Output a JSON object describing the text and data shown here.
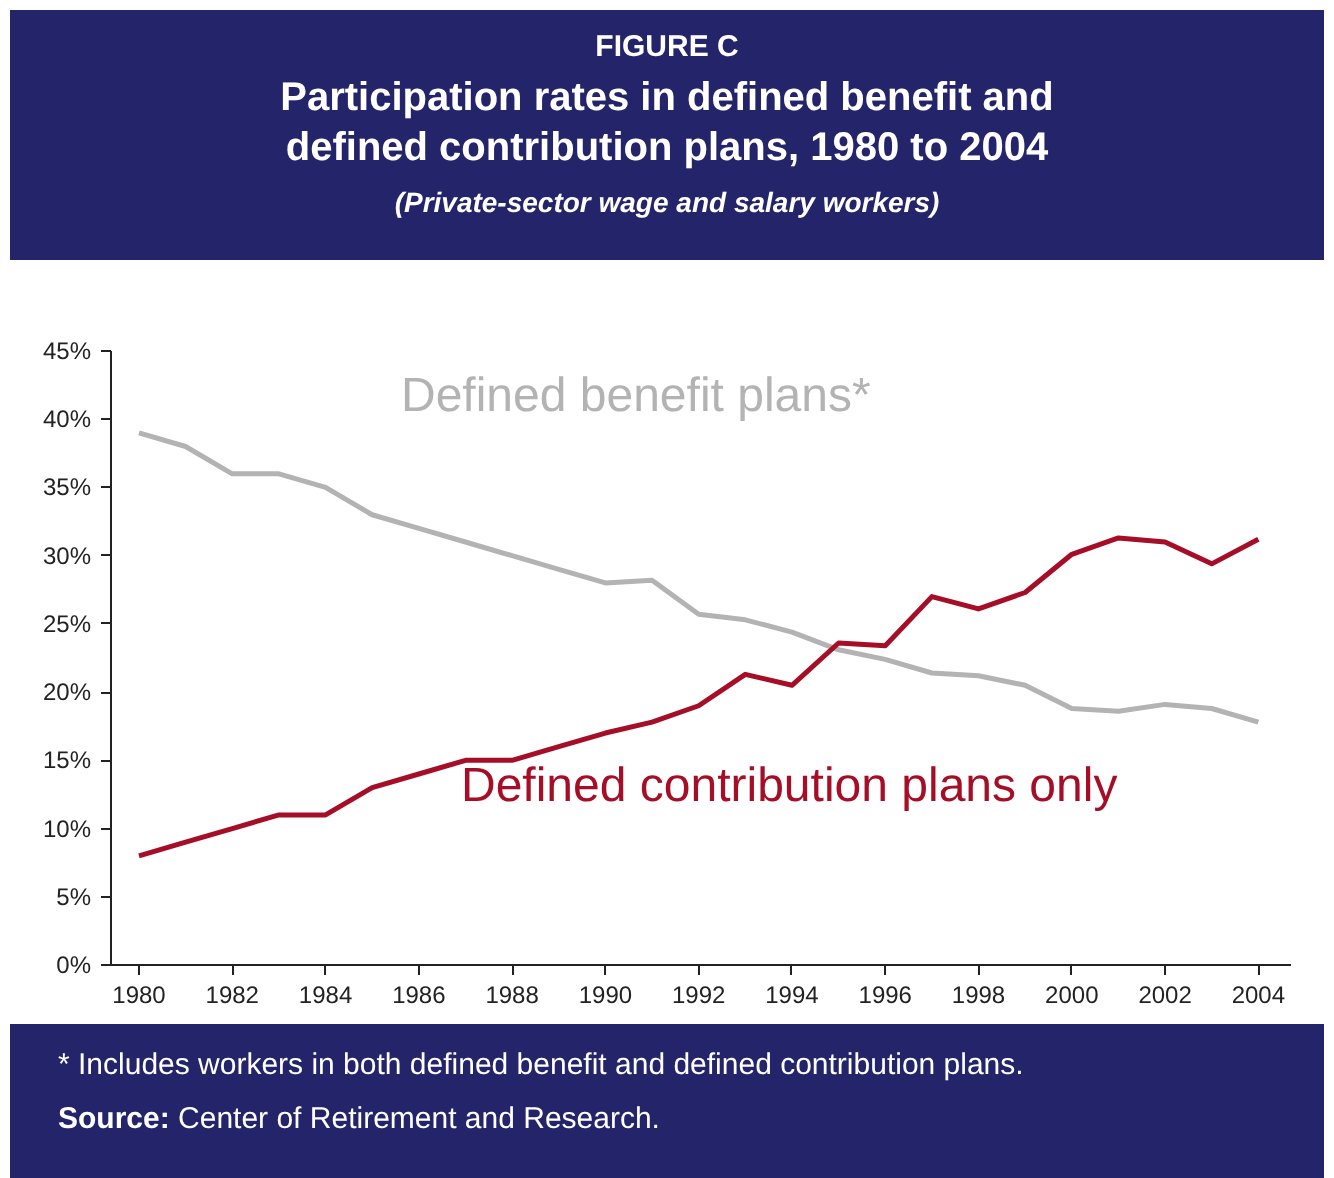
{
  "chart_data": {
    "type": "line",
    "title": "Participation rates in defined benefit and defined contribution plans, 1980 to 2004",
    "subtitle": "(Private-sector wage and salary workers)",
    "annotations": [
      "FIGURE C",
      "* Includes workers in both defined benefit and defined contribution plans.",
      "Source: Center of Retirement and Research."
    ],
    "x": [
      1980,
      1981,
      1982,
      1983,
      1984,
      1985,
      1986,
      1987,
      1988,
      1989,
      1990,
      1991,
      1992,
      1993,
      1994,
      1995,
      1996,
      1997,
      1998,
      1999,
      2000,
      2001,
      2002,
      2003,
      2004
    ],
    "series": [
      {
        "name": "Defined benefit plans*",
        "color": "#b3b3b3",
        "values": [
          39,
          38,
          36,
          36,
          35,
          33,
          32,
          31,
          30,
          29,
          28,
          28.2,
          25.7,
          25.3,
          24.4,
          23.1,
          22.4,
          21.4,
          21.2,
          20.5,
          18.8,
          18.6,
          19.1,
          18.8,
          17.8
        ]
      },
      {
        "name": "Defined contribution plans only",
        "color": "#a50e26",
        "values": [
          8,
          9,
          10,
          11,
          11,
          13,
          14,
          15,
          15,
          16,
          17,
          17.8,
          19,
          21.3,
          20.5,
          23.6,
          23.4,
          27,
          26.1,
          27.3,
          30.1,
          31.3,
          31.0,
          29.4,
          31.2
        ]
      }
    ],
    "xlim": [
      1979.4,
      2004.7
    ],
    "ylim": [
      0,
      45
    ],
    "xticks": [
      1980,
      1982,
      1984,
      1986,
      1988,
      1990,
      1992,
      1994,
      1996,
      1998,
      2000,
      2002,
      2004
    ],
    "yticks": [
      {
        "value": 0,
        "label": "0%"
      },
      {
        "value": 5,
        "label": "5%"
      },
      {
        "value": 10,
        "label": "10%"
      },
      {
        "value": 15,
        "label": "15%"
      },
      {
        "value": 20,
        "label": "20%"
      },
      {
        "value": 25,
        "label": "25%"
      },
      {
        "value": 30,
        "label": "30%"
      },
      {
        "value": 35,
        "label": "35%"
      },
      {
        "value": 40,
        "label": "40%"
      },
      {
        "value": 45,
        "label": "45%"
      }
    ],
    "grid": false,
    "marker": "none",
    "line_style": "solid"
  }
}
